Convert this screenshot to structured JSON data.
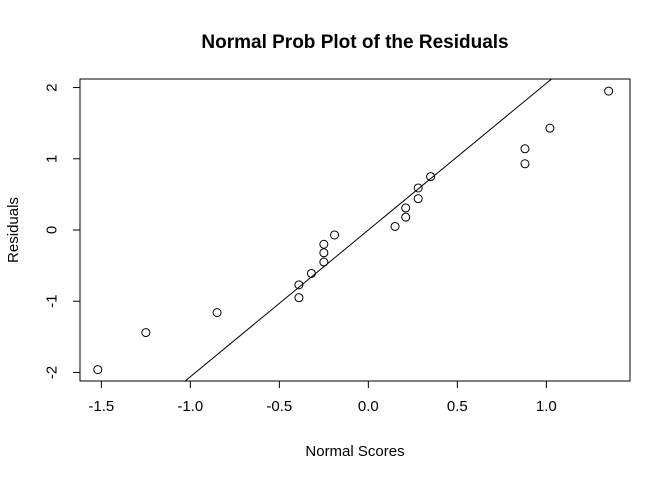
{
  "chart_data": {
    "type": "scatter",
    "title": "Normal Prob Plot of the Residuals",
    "xlabel": "Normal Scores",
    "ylabel": "Residuals",
    "xlim": [
      -1.62,
      1.47
    ],
    "ylim": [
      -2.12,
      2.12
    ],
    "x_ticks": [
      -1.5,
      -1.0,
      -0.5,
      0.0,
      0.5,
      1.0
    ],
    "x_tick_labels": [
      "-1.5",
      "-1.0",
      "-0.5",
      "0.0",
      "0.5",
      "1.0"
    ],
    "y_ticks": [
      -2,
      -1,
      0,
      1,
      2
    ],
    "y_tick_labels": [
      "-2",
      "-1",
      "0",
      "1",
      "2"
    ],
    "grid": false,
    "points": [
      {
        "x": -1.52,
        "y": -1.96
      },
      {
        "x": -1.25,
        "y": -1.44
      },
      {
        "x": -0.85,
        "y": -1.16
      },
      {
        "x": -0.39,
        "y": -0.77
      },
      {
        "x": -0.39,
        "y": -0.95
      },
      {
        "x": -0.32,
        "y": -0.61
      },
      {
        "x": -0.25,
        "y": -0.45
      },
      {
        "x": -0.25,
        "y": -0.32
      },
      {
        "x": -0.25,
        "y": -0.2
      },
      {
        "x": -0.19,
        "y": -0.07
      },
      {
        "x": 0.15,
        "y": 0.05
      },
      {
        "x": 0.21,
        "y": 0.18
      },
      {
        "x": 0.21,
        "y": 0.31
      },
      {
        "x": 0.28,
        "y": 0.44
      },
      {
        "x": 0.28,
        "y": 0.59
      },
      {
        "x": 0.35,
        "y": 0.75
      },
      {
        "x": 0.88,
        "y": 0.93
      },
      {
        "x": 0.88,
        "y": 1.14
      },
      {
        "x": 1.02,
        "y": 1.43
      },
      {
        "x": 1.35,
        "y": 1.95
      }
    ],
    "reference_line": {
      "intercept": 0.0,
      "slope": 2.06
    }
  }
}
